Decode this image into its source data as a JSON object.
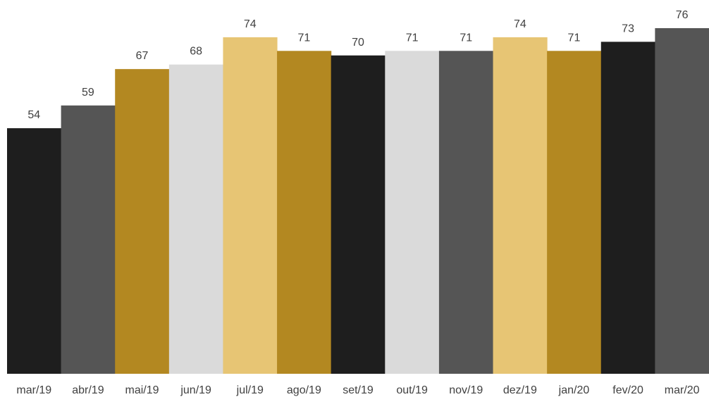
{
  "chart_data": {
    "type": "bar",
    "title": "",
    "xlabel": "",
    "ylabel": "",
    "categories": [
      "mar/19",
      "abr/19",
      "mai/19",
      "jun/19",
      "jul/19",
      "ago/19",
      "set/19",
      "out/19",
      "nov/19",
      "dez/19",
      "jan/20",
      "fev/20",
      "mar/20"
    ],
    "values": [
      54,
      59,
      67,
      68,
      74,
      71,
      70,
      71,
      71,
      74,
      71,
      73,
      76
    ],
    "colors": [
      "#1e1e1e",
      "#555555",
      "#b38821",
      "#dadada",
      "#e7c574",
      "#b38821",
      "#1e1e1e",
      "#dadada",
      "#555555",
      "#e7c574",
      "#b38821",
      "#1e1e1e",
      "#555555"
    ],
    "ylim": [
      0,
      76
    ],
    "grid": false,
    "legend": "none",
    "data_labels": true,
    "label_color": "#404040"
  }
}
